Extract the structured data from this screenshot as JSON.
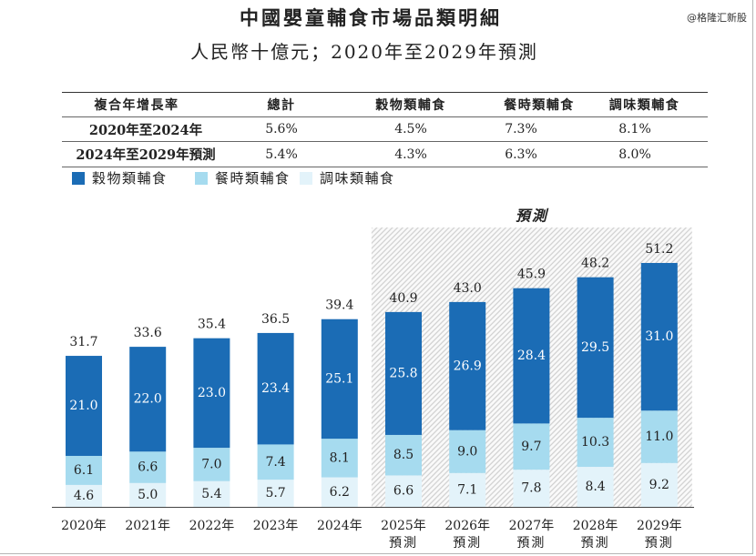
{
  "watermark": "@格隆汇新股",
  "chart_data": [
    {
      "type": "table",
      "header": [
        "複合年增長率",
        "總計",
        "穀物類輔食",
        "餐時類輔食",
        "調味類輔食"
      ],
      "rows": [
        [
          "2020年至2024年",
          "5.6%",
          "4.5%",
          "7.3%",
          "8.1%"
        ],
        [
          "2024年至2029年預測",
          "5.4%",
          "4.3%",
          "6.3%",
          "8.0%"
        ]
      ]
    },
    {
      "type": "bar",
      "stacked": true,
      "title": "中國嬰童輔食市場品類明細",
      "subtitle": "人民幣十億元；2020年至2029年預測",
      "categories": [
        "2020年",
        "2021年",
        "2022年",
        "2023年",
        "2024年",
        "2025年",
        "2026年",
        "2027年",
        "2028年",
        "2029年"
      ],
      "forecast": [
        false,
        false,
        false,
        false,
        false,
        true,
        true,
        true,
        true,
        true
      ],
      "forecast_label": "預測",
      "series": [
        {
          "name": "穀物類輔食",
          "color": "#1b6cb5",
          "values": [
            21.0,
            22.0,
            23.0,
            23.4,
            25.1,
            25.8,
            26.9,
            28.4,
            29.5,
            31.0
          ]
        },
        {
          "name": "餐時類輔食",
          "color": "#a6dbef",
          "values": [
            6.1,
            6.6,
            7.0,
            7.4,
            8.1,
            8.5,
            9.0,
            9.7,
            10.3,
            11.0
          ]
        },
        {
          "name": "調味類輔食",
          "color": "#e3f3fa",
          "values": [
            4.6,
            5.0,
            5.4,
            5.7,
            6.2,
            6.6,
            7.1,
            7.8,
            8.4,
            9.2
          ]
        }
      ],
      "totals": [
        31.7,
        33.6,
        35.4,
        36.5,
        39.4,
        40.9,
        43.0,
        45.9,
        48.2,
        51.2
      ],
      "grid": false,
      "legend": "top-left"
    }
  ]
}
